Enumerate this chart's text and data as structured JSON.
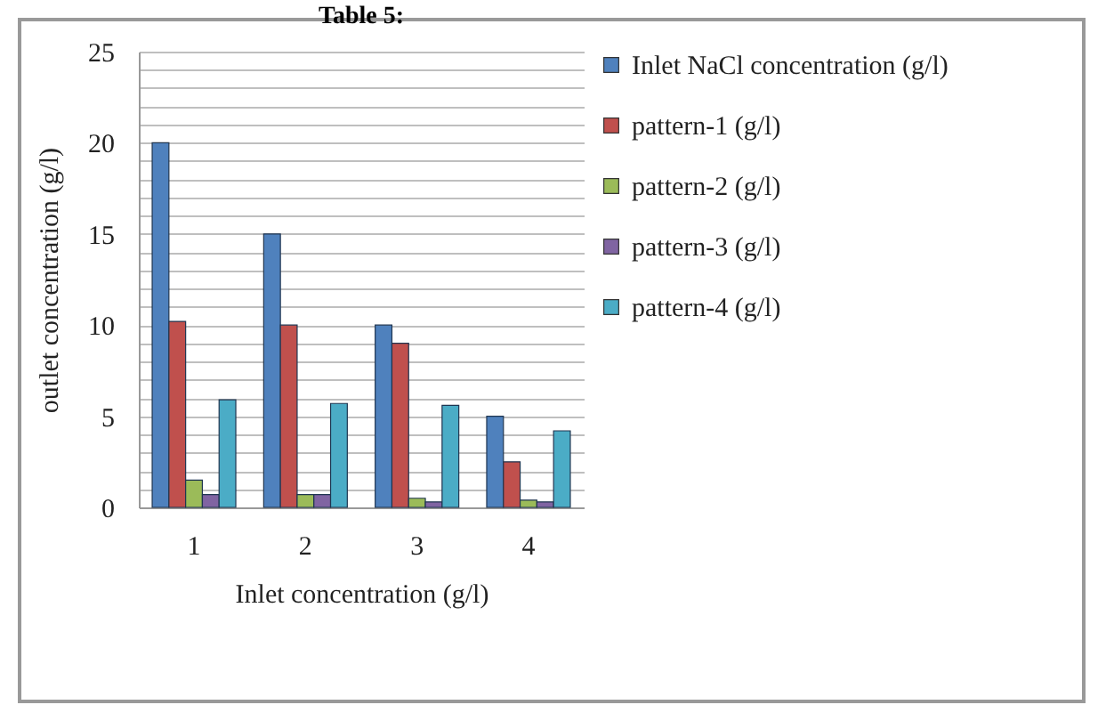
{
  "chart_data": {
    "type": "bar",
    "title": "Table 5:",
    "xlabel": "Inlet concentration (g/l)",
    "ylabel": "outlet concentration (g/l)",
    "categories": [
      "1",
      "2",
      "3",
      "4"
    ],
    "series": [
      {
        "name": "Inlet NaCl concentration (g/l)",
        "color": "#4f81bd",
        "values": [
          20,
          15,
          10,
          5
        ]
      },
      {
        "name": "pattern-1 (g/l)",
        "color": "#c0504d",
        "values": [
          10.2,
          10,
          9,
          2.5
        ]
      },
      {
        "name": "pattern-2 (g/l)",
        "color": "#9bbb59",
        "values": [
          1.5,
          0.7,
          0.5,
          0.4
        ]
      },
      {
        "name": "pattern-3 (g/l)",
        "color": "#8064a2",
        "values": [
          0.7,
          0.7,
          0.3,
          0.3
        ]
      },
      {
        "name": "pattern-4 (g/l)",
        "color": "#4bacc6",
        "values": [
          5.9,
          5.7,
          5.6,
          4.2
        ]
      }
    ],
    "ylim": [
      0,
      25
    ],
    "yticks": [
      0,
      {
        "value": 1,
        "label": null
      },
      {
        "value": 2,
        "label": null
      },
      {
        "value": 3,
        "label": null
      },
      {
        "value": 4,
        "label": null
      },
      5,
      {
        "value": 6,
        "label": null
      },
      {
        "value": 7,
        "label": null
      },
      {
        "value": 8,
        "label": null
      },
      {
        "value": 9,
        "label": null
      },
      10,
      {
        "value": 11,
        "label": null
      },
      {
        "value": 12,
        "label": null
      },
      {
        "value": 13,
        "label": null
      },
      {
        "value": 14,
        "label": null
      },
      15,
      {
        "value": 16,
        "label": null
      },
      {
        "value": 17,
        "label": null
      },
      {
        "value": 18,
        "label": null
      },
      {
        "value": 19,
        "label": null
      },
      20,
      {
        "value": 21,
        "label": null
      },
      {
        "value": 22,
        "label": null
      },
      {
        "value": 23,
        "label": null
      },
      {
        "value": 24,
        "label": null
      },
      25
    ],
    "grid": "y",
    "legend": "right"
  }
}
